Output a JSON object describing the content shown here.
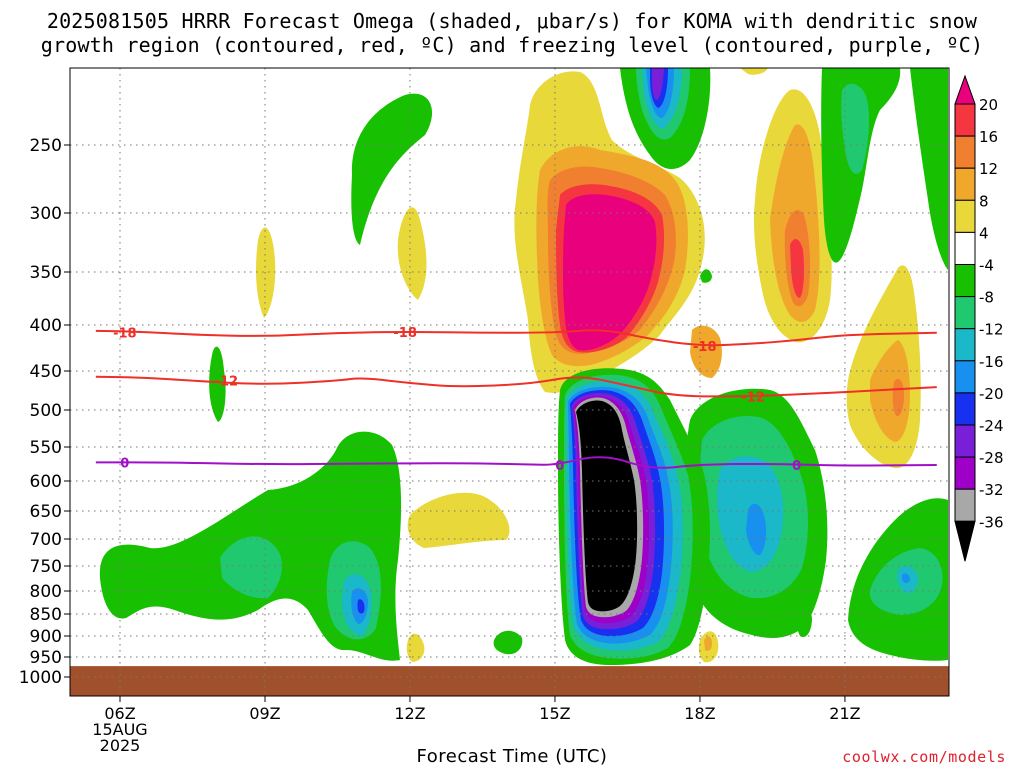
{
  "title_line1": "2025081505 HRRR Forecast Omega (shaded, μbar/s) for KOMA with dendritic snow",
  "title_line2": "growth region (contoured, red, ºC) and freezing level (contoured, purple, ºC)",
  "credit": "coolwx.com/models",
  "chart_data": {
    "type": "heatmap",
    "title": "2025081505 HRRR Forecast Omega (shaded, μbar/s) for KOMA with dendritic snow growth region (contoured, red, ºC) and freezing level (contoured, purple, ºC)",
    "xlabel": "Forecast Time (UTC)",
    "ylabel": "",
    "x_ticks": [
      {
        "hour": 6,
        "label": "06Z",
        "sub1": "15AUG",
        "sub2": "2025"
      },
      {
        "hour": 9,
        "label": "09Z"
      },
      {
        "hour": 12,
        "label": "12Z"
      },
      {
        "hour": 15,
        "label": "15Z"
      },
      {
        "hour": 18,
        "label": "18Z"
      },
      {
        "hour": 21,
        "label": "21Z"
      }
    ],
    "xlim": [
      5.5,
      22.9
    ],
    "y_ticks": [
      250,
      300,
      350,
      400,
      450,
      500,
      550,
      600,
      650,
      700,
      750,
      800,
      850,
      900,
      950,
      1000
    ],
    "ylim_hPa": [
      200,
      1000
    ],
    "y_scale": "log-pressure",
    "grid": true,
    "colorbar": {
      "labels": [
        "20",
        "16",
        "12",
        "8",
        "4",
        "-4",
        "-8",
        "-12",
        "-16",
        "-20",
        "-24",
        "-28",
        "-32",
        "-36"
      ],
      "colors": [
        "#e8007c",
        "#f5353f",
        "#f08030",
        "#f0a82c",
        "#e8d83a",
        "#ffffff",
        "#17c000",
        "#20c870",
        "#1ab8c8",
        "#1890f0",
        "#1830f0",
        "#7a1fd8",
        "#9e00c8",
        "#a8a8a8",
        "#000000"
      ]
    },
    "contours": [
      {
        "name": "-18",
        "color": "#ee3028",
        "points": [
          [
            5.5,
            406
          ],
          [
            6.5,
            407
          ],
          [
            7.5,
            410
          ],
          [
            9,
            412
          ],
          [
            10.5,
            408
          ],
          [
            12,
            407
          ],
          [
            13.5,
            408
          ],
          [
            15,
            408
          ],
          [
            16,
            404
          ],
          [
            17,
            415
          ],
          [
            18,
            422
          ],
          [
            19,
            420
          ],
          [
            20,
            416
          ],
          [
            21,
            410
          ],
          [
            22.9,
            408
          ]
        ],
        "labels": [
          [
            6.1,
            408
          ],
          [
            11.9,
            407
          ],
          [
            18.1,
            422
          ]
        ]
      },
      {
        "name": "-12",
        "color": "#ee3028",
        "points": [
          [
            5.5,
            457
          ],
          [
            6.5,
            458
          ],
          [
            7.5,
            462
          ],
          [
            9,
            467
          ],
          [
            10.5,
            462
          ],
          [
            11,
            458
          ],
          [
            12,
            465
          ],
          [
            13,
            470
          ],
          [
            14.5,
            466
          ],
          [
            15.5,
            455
          ],
          [
            16.5,
            468
          ],
          [
            17.5,
            482
          ],
          [
            19,
            482
          ],
          [
            20.5,
            478
          ],
          [
            22.9,
            470
          ]
        ],
        "labels": [
          [
            8.2,
            462
          ],
          [
            19.1,
            482
          ]
        ]
      },
      {
        "name": "0",
        "color": "#a010c8",
        "points": [
          [
            5.5,
            572
          ],
          [
            7,
            572
          ],
          [
            9,
            575
          ],
          [
            11,
            574
          ],
          [
            13,
            573
          ],
          [
            14.5,
            575
          ],
          [
            15,
            576
          ],
          [
            16,
            560
          ],
          [
            17,
            583
          ],
          [
            18,
            575
          ],
          [
            19.5,
            574
          ],
          [
            21,
            577
          ],
          [
            22.9,
            576
          ]
        ],
        "labels": [
          [
            6.1,
            572
          ],
          [
            15.1,
            576
          ],
          [
            20,
            576
          ]
        ]
      }
    ],
    "ground_level_hPa": 975
  }
}
